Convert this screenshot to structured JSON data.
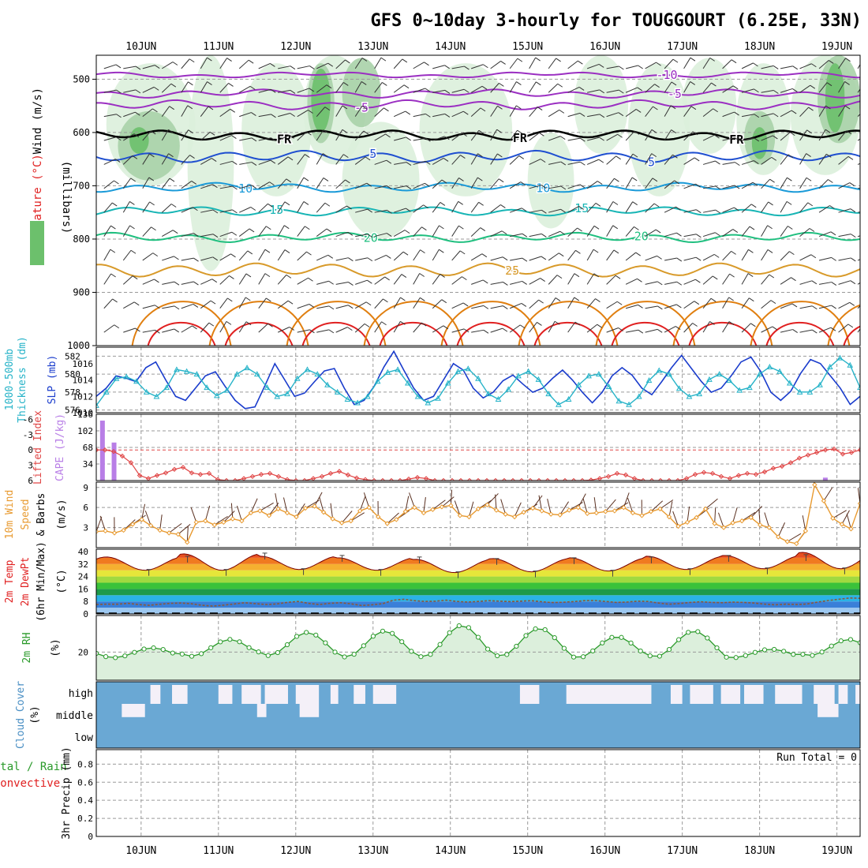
{
  "chart_data": {
    "type": "meteogram",
    "title": "GFS 0~10day 3-hourly for TOUGGOURT (6.25E, 33N)",
    "dates": [
      "10JUN",
      "11JUN",
      "12JUN",
      "13JUN",
      "14JUN",
      "15JUN",
      "16JUN",
      "17JUN",
      "18JUN",
      "19JUN"
    ],
    "x_range_days": [
      -0.58,
      9.3
    ],
    "run_total": "Run Total = 0",
    "colors": {
      "frame": "#000000",
      "grid": "#9a9a9a",
      "rh_light": "#dcefdc",
      "rh_mid": "#a8d2a8",
      "rh_dark": "#6cc06c",
      "freeze": "#000000",
      "cold": "#9b2fc2",
      "mid_blue": "#1f4fd0",
      "light_blue": "#1a9ad8",
      "cyan": "#17b5b5",
      "green": "#1fbf7f",
      "orange": "#d89a2a",
      "dark_orange": "#e07f10",
      "red": "#e02020",
      "slp": "#1a3ccc",
      "thick": "#26b3c8",
      "lifted": "#e04646",
      "cape": "#b87ee6",
      "wind_speed": "#e89a30",
      "barb": "#5a3020",
      "rh2m": "#2a9a2a",
      "cloud": "#6aa8d4",
      "cloud_clear": "#f4f0f8"
    },
    "panels": {
      "upper_air": {
        "ylabel_left": [
          "RH (%)",
          "Temperature (°C)",
          "Wind (m/s)"
        ],
        "ylabel_units": "(millibars)",
        "yticks": [
          "500",
          "600",
          "700",
          "800",
          "900",
          "1000"
        ],
        "ylim_mb": [
          455,
          1000
        ],
        "isotherms": [
          {
            "name": "-10",
            "color": "cold",
            "base": 492,
            "amp": 3,
            "label": "-10",
            "label_day": 6.8
          },
          {
            "name": "-5",
            "color": "cold",
            "base": 527,
            "amp": 5,
            "label": "-5",
            "label_day": 6.9
          },
          {
            "name": "-5b",
            "color": "cold",
            "base": 548,
            "amp": 6,
            "label": "-5",
            "label_day": 2.85
          },
          {
            "name": "FR",
            "color": "freeze",
            "base": 605,
            "amp": 7,
            "label": "FR",
            "label_day": 1.85,
            "labels_extra_days": [
              4.9,
              7.7
            ]
          },
          {
            "name": "5",
            "color": "mid_blue",
            "base": 645,
            "amp": 8,
            "label": "5",
            "label_day": 3.0,
            "labels_extra_days": [
              6.6
            ]
          },
          {
            "name": "10",
            "color": "light_blue",
            "base": 703,
            "amp": 6,
            "label": "10",
            "label_day": 1.35,
            "labels_extra_days": [
              5.2
            ]
          },
          {
            "name": "15",
            "color": "cyan",
            "base": 748,
            "amp": 6,
            "label": "15",
            "label_day": 1.75,
            "labels_extra_days": [
              5.7
            ]
          },
          {
            "name": "20",
            "color": "green",
            "base": 797,
            "amp": 6,
            "label": "20",
            "label_day": 2.97,
            "labels_extra_days": [
              6.47
            ]
          },
          {
            "name": "25",
            "color": "orange",
            "base": 858,
            "amp": 10,
            "label": "25",
            "label_day": 4.8
          }
        ],
        "contour_labels": [
          "0",
          "30",
          "30",
          "30",
          "30",
          "30"
        ]
      },
      "slp_thickness": {
        "ylabel_left": [
          "1000-500mb",
          "Thickness (dm)"
        ],
        "ylabel_right": "SLP (mb)",
        "thickness_ticks": [
          "576",
          "578",
          "580",
          "582"
        ],
        "slp_ticks": [
          "1010",
          "1012",
          "1014",
          "1016"
        ],
        "thickness_range": [
          575.7,
          583.0
        ],
        "slp_range": [
          1010,
          1018
        ],
        "slp": [
          1012,
          1013,
          1014.5,
          1014.2,
          1013.8,
          1015.5,
          1016.2,
          1014,
          1012,
          1011.5,
          1013,
          1014.5,
          1015,
          1013.2,
          1011.5,
          1010.5,
          1010.7,
          1013.3,
          1016,
          1014,
          1012,
          1012.4,
          1013.8,
          1015.1,
          1015.4,
          1013,
          1011,
          1011.5,
          1013.2,
          1015.6,
          1017.5,
          1015.2,
          1013,
          1011.5,
          1012,
          1014,
          1016,
          1015.2,
          1013,
          1011.8,
          1012.5,
          1013.9,
          1014.6,
          1013.5,
          1012.5,
          1013,
          1014.2,
          1015.2,
          1014,
          1012.5,
          1011.2,
          1012.5,
          1014.5,
          1015.5,
          1014.6,
          1013,
          1012.2,
          1013.8,
          1015.5,
          1017,
          1015.4,
          1013.8,
          1012.5,
          1013,
          1014.5,
          1016.2,
          1016.8,
          1015,
          1012.5,
          1011.5,
          1012.6,
          1014.8,
          1016.5,
          1016,
          1014.5,
          1013,
          1011,
          1012
        ],
        "thickness": [
          576.5,
          578,
          579.5,
          579.7,
          579.2,
          578,
          577.5,
          578.5,
          580.5,
          580.3,
          580,
          578.5,
          577.6,
          578.2,
          580,
          580.7,
          580,
          578.5,
          577.5,
          577.8,
          579.5,
          580.5,
          580,
          578.8,
          578,
          577.2,
          576.8,
          577.5,
          579.2,
          580.2,
          580.5,
          579,
          577.5,
          576.8,
          577.3,
          579,
          580.3,
          580.6,
          579.5,
          577.8,
          577.2,
          578.3,
          579.8,
          580.3,
          579.4,
          577.8,
          576.6,
          577.2,
          578.8,
          579.8,
          580,
          578.6,
          577,
          576.6,
          577.5,
          579.3,
          580.4,
          580,
          578.4,
          577.5,
          577.8,
          579.4,
          580,
          579.3,
          578.2,
          578.5,
          580,
          580.8,
          580.3,
          579,
          578,
          578,
          578.8,
          580.8,
          581.8,
          581,
          578.5
        ]
      },
      "lifted_cape": {
        "ylabel_left": "Lifted Index",
        "ylabel_right": "CAPE (J/kg)",
        "li_ticks": [
          "6",
          "3",
          "0",
          "-3",
          "-6"
        ],
        "cape_ticks": [
          "34",
          "68",
          "102",
          "136"
        ],
        "li_range": [
          6,
          -7
        ],
        "cape_range": [
          0,
          136
        ],
        "lifted_index": [
          0,
          0,
          0.3,
          1.2,
          2.5,
          5,
          5.6,
          5,
          4.5,
          3.8,
          3.4,
          4.5,
          4.8,
          4.6,
          5.8,
          6,
          6,
          5.6,
          5.2,
          4.8,
          4.6,
          5.2,
          5.8,
          6,
          6,
          5.6,
          5.2,
          4.6,
          4.2,
          4.9,
          5.5,
          5.8,
          6,
          6,
          6,
          6,
          5.7,
          5.4,
          5.6,
          6,
          6,
          6,
          6,
          6,
          6,
          6,
          6,
          6,
          6,
          6,
          6,
          6,
          6,
          6,
          6,
          6,
          6,
          5.9,
          5.6,
          5.2,
          4.6,
          4.9,
          5.6,
          6,
          6,
          6,
          6,
          6,
          5.6,
          4.8,
          4.4,
          4.6,
          5.2,
          5.6,
          5,
          4.6,
          4.8,
          4.3,
          3.6,
          3.2,
          2.5,
          1.6,
          1,
          0.5,
          0,
          -0.2,
          0.8,
          0.5,
          0
        ],
        "cape_bars": [
          {
            "day": -0.5,
            "value": 123
          },
          {
            "day": -0.35,
            "value": 78
          },
          {
            "day": 8.85,
            "value": 6
          }
        ]
      },
      "wind10m": {
        "ylabel_left": [
          "10m Wind",
          "Speed",
          "& Barbs"
        ],
        "ylabel_units": "(m/s)",
        "yticks": [
          "3",
          "6",
          "9"
        ],
        "ylim": [
          0,
          9.8
        ],
        "speed": [
          2.4,
          2.5,
          2.2,
          2.6,
          3.5,
          4.2,
          3.3,
          2.6,
          2.2,
          2.0,
          0.8,
          3.8,
          4.0,
          3.4,
          3.8,
          4.3,
          4.0,
          5.2,
          5.5,
          4.8,
          5.8,
          5.2,
          4.6,
          5.9,
          6.2,
          5.3,
          4.3,
          3.7,
          4.0,
          5.5,
          6.0,
          4.6,
          3.6,
          4.2,
          5.4,
          6.0,
          5.2,
          5.7,
          6.1,
          6.3,
          4.8,
          4.6,
          5.8,
          6.4,
          5.6,
          5.0,
          4.6,
          5.3,
          5.9,
          5.5,
          5.0,
          4.9,
          5.6,
          6.0,
          5.1,
          5.2,
          5.4,
          5.5,
          6.0,
          5.2,
          4.8,
          5.4,
          5.8,
          4.6,
          3.2,
          3.8,
          4.5,
          5.8,
          3.6,
          3.0,
          3.7,
          4.0,
          4.5,
          3.4,
          3.0,
          1.6,
          0.9,
          0.6,
          2.5,
          9.4,
          7.0,
          4.4,
          3.5,
          2.8,
          6.6
        ]
      },
      "temp2m": {
        "ylabel_left": [
          "2m Temp",
          "2m DewPt",
          "(6hr Min/Max)"
        ],
        "ylabel_units": "(°C)",
        "yticks": [
          "0",
          "8",
          "16",
          "24",
          "32",
          "40"
        ],
        "ylim": [
          0,
          41.5
        ],
        "band_colors": [
          "#9dc8f0",
          "#3a7fd8",
          "#2bb3e6",
          "#1e9a4a",
          "#3ac23a",
          "#a0d940",
          "#e6e63a",
          "#f5b030",
          "#f07a20",
          "#e85020",
          "#d62a20",
          "#b01010"
        ],
        "band_edges": [
          0,
          4,
          8,
          12,
          16,
          20,
          24,
          28,
          32,
          36,
          40,
          44
        ],
        "temp_max_by_day": [
          36.5,
          38.5,
          37,
          36,
          35,
          35.5,
          36,
          37,
          37.5,
          39.5
        ],
        "temp_min_by_day": [
          28,
          28,
          28.5,
          28,
          26.5,
          27,
          27.5,
          28.5,
          29,
          29
        ],
        "dewpoint": [
          6,
          6.3,
          6.2,
          6.8,
          6.0,
          5.5,
          6.2,
          6.8,
          7.0,
          6.5,
          5.5,
          5.0,
          5.6,
          6.4,
          7.2,
          6.6,
          6.0,
          6.4,
          7.4,
          8.0,
          6.8,
          6.0,
          6.8,
          7.2,
          6.5,
          5.4,
          5.8,
          6.6,
          8.8,
          9.4,
          8.5,
          8.0,
          8.2,
          8.8,
          8.0,
          7.6,
          8.0,
          8.5,
          8.2,
          7.9,
          8.2,
          8.5,
          7.8,
          7.3,
          7.5,
          7.9,
          8.5,
          8.6,
          8.0,
          7.4,
          7.6,
          8.2,
          8.0,
          7.0,
          6.2,
          6.7,
          7.4,
          7.8,
          7.4,
          7.2,
          7.6,
          7.4,
          7.0,
          6.3,
          5.8,
          6.3,
          6.0,
          6.4,
          7.6,
          8.6,
          9.4,
          10.2,
          10.0
        ]
      },
      "rh2m": {
        "ylabel_left": "2m RH",
        "ylabel_units": "(%)",
        "yticks": [
          "20"
        ],
        "ylim": [
          0,
          46
        ],
        "rh_min_by_day": [
          16,
          17,
          17.5,
          16.5,
          16.5,
          17,
          16,
          16.5,
          16,
          17.5
        ],
        "rh_max_by_day": [
          23,
          29,
          34,
          35,
          39,
          37,
          31,
          35,
          22,
          29
        ]
      },
      "cloud": {
        "ylabel_left": "Cloud Cover",
        "ylabel_units": "(%)",
        "levels": [
          "high",
          "middle",
          "low"
        ],
        "high_clear_segments": [
          [
            0.12,
            0.25
          ],
          [
            0.4,
            0.6
          ],
          [
            1.0,
            1.18
          ],
          [
            1.3,
            1.55
          ],
          [
            1.6,
            1.9
          ],
          [
            2.0,
            2.3
          ],
          [
            2.45,
            2.55
          ],
          [
            2.75,
            2.9
          ],
          [
            3.0,
            3.3
          ],
          [
            4.9,
            5.15
          ],
          [
            5.5,
            6.6
          ],
          [
            6.85,
            7.0
          ],
          [
            7.1,
            7.4
          ],
          [
            7.5,
            7.75
          ],
          [
            7.8,
            8.05
          ],
          [
            8.2,
            8.55
          ],
          [
            8.7,
            8.97
          ],
          [
            9.02,
            9.14
          ],
          [
            9.24,
            9.3
          ]
        ],
        "mid_clear_segments": [
          [
            -0.25,
            0.05
          ],
          [
            1.5,
            1.62
          ],
          [
            2.05,
            2.3
          ],
          [
            8.75,
            9.02
          ]
        ]
      },
      "precip": {
        "ylabel_left": [
          "Total / Rain",
          "Convective"
        ],
        "ylabel_units": "3hr Precip (mm)",
        "yticks": [
          "0",
          "0.2",
          "0.4",
          "0.6",
          "0.8"
        ],
        "ylim": [
          0,
          0.96
        ]
      }
    }
  }
}
